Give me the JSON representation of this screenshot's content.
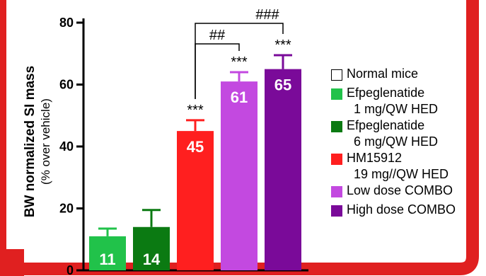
{
  "chart_data": {
    "type": "bar",
    "ylabel": "BW normalized SI mass",
    "ylabel_sub": "(% over vehicle)",
    "ylim": [
      0,
      80
    ],
    "yticks": [
      0,
      20,
      40,
      60,
      80
    ],
    "series": [
      {
        "legend_line1": "Normal mice",
        "legend_line2": "",
        "value": null,
        "error": null,
        "label": "",
        "significance": "",
        "color": "#ffffff"
      },
      {
        "legend_line1": "Efpeglenatide",
        "legend_line2": "1 mg/QW HED",
        "value": 11,
        "error": 2.5,
        "label": "11",
        "significance": "",
        "color": "#21c24a"
      },
      {
        "legend_line1": "Efpeglenatide",
        "legend_line2": "6 mg/QW HED",
        "value": 14,
        "error": 5.5,
        "label": "14",
        "significance": "",
        "color": "#0b7a12"
      },
      {
        "legend_line1": "HM15912",
        "legend_line2": "19 mg//QW HED",
        "value": 45,
        "error": 3.5,
        "label": "45",
        "significance": "***",
        "color": "#ff1f1f"
      },
      {
        "legend_line1": "Low dose COMBO",
        "legend_line2": "",
        "value": 61,
        "error": 3,
        "label": "61",
        "significance": "***",
        "color": "#c349e0"
      },
      {
        "legend_line1": "High dose COMBO",
        "legend_line2": "",
        "value": 65,
        "error": 4.5,
        "label": "65",
        "significance": "***",
        "color": "#7a0a99"
      }
    ],
    "comparisons": [
      {
        "from": 3,
        "to": 4,
        "label": "##"
      },
      {
        "from": 3,
        "to": 5,
        "label": "###"
      }
    ],
    "grid": false,
    "legend_position": "right"
  },
  "colors": {
    "frame": "#e02020",
    "axis": "#000000",
    "bar_label": "#ffffff"
  }
}
